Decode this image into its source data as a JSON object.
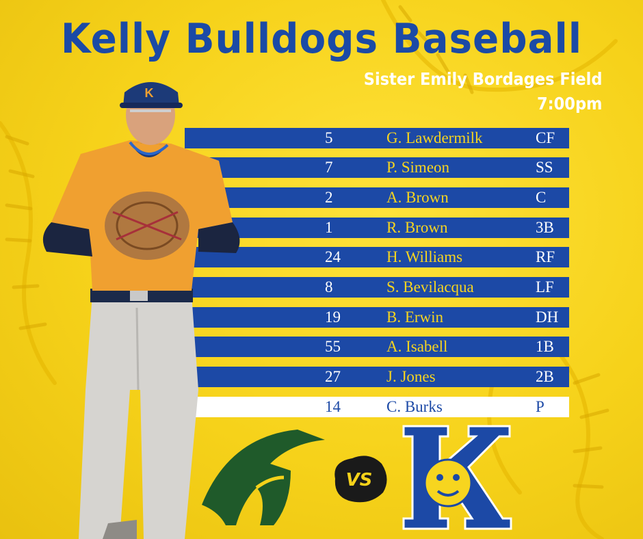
{
  "header": {
    "title": "Kelly Bulldogs Baseball",
    "venue": "Sister Emily Bordages Field",
    "time": "7:00pm"
  },
  "lineup": [
    {
      "number": "5",
      "name": "G. Lawdermilk",
      "position": "CF"
    },
    {
      "number": "7",
      "name": "P. Simeon",
      "position": "SS"
    },
    {
      "number": "2",
      "name": "A. Brown",
      "position": "C"
    },
    {
      "number": "1",
      "name": "R. Brown",
      "position": "3B"
    },
    {
      "number": "24",
      "name": "H. Williams",
      "position": "RF"
    },
    {
      "number": "8",
      "name": "S. Bevilacqua",
      "position": "LF"
    },
    {
      "number": "19",
      "name": "B. Erwin",
      "position": "DH"
    },
    {
      "number": "55",
      "name": "A. Isabell",
      "position": "1B"
    },
    {
      "number": "27",
      "name": "J. Jones",
      "position": "2B"
    },
    {
      "number": "14",
      "name": "C. Burks",
      "position": "P"
    }
  ],
  "matchup": {
    "vs_label": "VS",
    "home_logo_letter": "K"
  },
  "colors": {
    "brand_blue": "#1c49a6",
    "brand_yellow": "#f7d51f",
    "spartan_green": "#1f5a2a",
    "jersey_orange": "#f0a030"
  },
  "icons": {
    "opponent_logo": "spartan-helmet-icon",
    "home_logo": "bulldog-k-icon",
    "player": "baseball-player-photo"
  }
}
